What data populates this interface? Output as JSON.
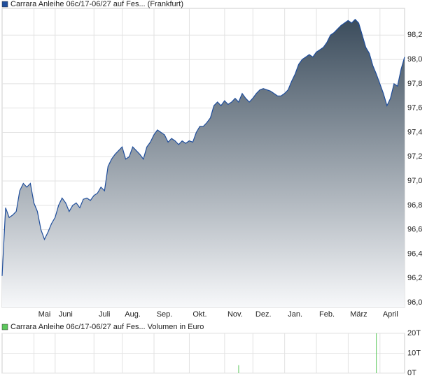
{
  "chart_data": [
    {
      "type": "area",
      "title": "Carrara Anleihe 06c/17-06/27 auf Fes... (Frankfurt)",
      "categories": [
        null,
        null,
        null,
        null,
        null,
        null,
        null,
        null,
        null,
        null,
        null,
        null,
        "Mai",
        null,
        null,
        null,
        null,
        null,
        "Juni",
        null,
        null,
        null,
        null,
        null,
        null,
        null,
        null,
        null,
        null,
        "Juli",
        null,
        null,
        null,
        null,
        null,
        null,
        null,
        "Aug.",
        null,
        null,
        null,
        null,
        null,
        null,
        null,
        null,
        "Sep.",
        null,
        null,
        null,
        null,
        null,
        null,
        null,
        null,
        null,
        "Okt.",
        null,
        null,
        null,
        null,
        null,
        null,
        null,
        null,
        null,
        "Nov.",
        null,
        null,
        null,
        null,
        null,
        null,
        null,
        "Dez.",
        null,
        null,
        null,
        null,
        null,
        null,
        null,
        null,
        "Jan.",
        null,
        null,
        null,
        null,
        null,
        null,
        null,
        null,
        "Feb.",
        null,
        null,
        null,
        null,
        null,
        null,
        null,
        null,
        "März",
        null,
        null,
        null,
        null,
        null,
        null,
        null,
        null,
        "April",
        null,
        null,
        null,
        null
      ],
      "series": [
        {
          "name": "Carrara Anleihe 06c/17-06/27 auf Fes... (Frankfurt)",
          "color": "#1f4e9c",
          "values": [
            96.22,
            96.78,
            96.7,
            96.72,
            96.75,
            96.92,
            96.98,
            96.95,
            96.98,
            96.82,
            96.75,
            96.6,
            96.52,
            96.58,
            96.65,
            96.7,
            96.8,
            96.86,
            96.82,
            96.75,
            96.8,
            96.82,
            96.78,
            96.85,
            96.86,
            96.84,
            96.88,
            96.9,
            96.95,
            96.92,
            97.12,
            97.18,
            97.22,
            97.25,
            97.28,
            97.18,
            97.2,
            97.28,
            97.25,
            97.22,
            97.18,
            97.28,
            97.32,
            97.38,
            97.42,
            97.4,
            97.38,
            97.32,
            97.35,
            97.33,
            97.3,
            97.33,
            97.31,
            97.33,
            97.32,
            97.4,
            97.45,
            97.45,
            97.48,
            97.52,
            97.62,
            97.65,
            97.62,
            97.66,
            97.63,
            97.65,
            97.68,
            97.65,
            97.72,
            97.68,
            97.65,
            97.68,
            97.72,
            97.75,
            97.76,
            97.75,
            97.74,
            97.72,
            97.7,
            97.7,
            97.72,
            97.75,
            97.82,
            97.88,
            97.96,
            98.0,
            98.02,
            98.04,
            98.02,
            98.06,
            98.08,
            98.1,
            98.14,
            98.2,
            98.22,
            98.25,
            98.28,
            98.3,
            98.32,
            98.3,
            98.33,
            98.3,
            98.2,
            98.1,
            98.05,
            97.95,
            97.88,
            97.8,
            97.72,
            97.62,
            97.68,
            97.8,
            97.78,
            97.92,
            98.02
          ]
        }
      ],
      "ylim": [
        95.96,
        98.42
      ],
      "yticks": [
        {
          "value": 96.0,
          "label": "96,0"
        },
        {
          "value": 96.2,
          "label": "96,2"
        },
        {
          "value": 96.4,
          "label": "96,4"
        },
        {
          "value": 96.6,
          "label": "96,6"
        },
        {
          "value": 96.8,
          "label": "96,8"
        },
        {
          "value": 97.0,
          "label": "97,0"
        },
        {
          "value": 97.2,
          "label": "97,2"
        },
        {
          "value": 97.4,
          "label": "97,4"
        },
        {
          "value": 97.6,
          "label": "97,6"
        },
        {
          "value": 97.8,
          "label": "97,8"
        },
        {
          "value": 98.0,
          "label": "98,0"
        },
        {
          "value": 98.2,
          "label": "98,2"
        }
      ],
      "grid": true
    },
    {
      "type": "bar",
      "title": "Carrara Anleihe 06c/17-06/27 auf Fes... Volumen in Euro",
      "series": [
        {
          "name": "Carrara Anleihe 06c/17-06/27 auf Fes... Volumen in Euro",
          "color": "#5cc85c",
          "values": [
            0,
            0,
            0,
            0,
            0,
            0,
            0,
            0,
            0,
            0,
            0,
            0,
            0,
            0,
            0,
            0,
            0,
            0,
            0,
            0,
            0,
            0,
            0,
            0,
            0,
            0,
            0,
            0,
            0,
            0,
            0,
            0,
            0,
            0,
            0,
            0,
            0,
            0,
            0,
            0,
            0,
            0,
            0,
            0,
            0,
            0,
            0,
            0,
            0,
            0,
            0,
            0,
            0,
            0,
            0,
            0,
            0,
            0,
            0,
            0,
            0,
            0,
            0,
            0,
            0,
            0,
            0,
            4000,
            0,
            0,
            0,
            0,
            0,
            0,
            0,
            0,
            0,
            0,
            0,
            0,
            0,
            0,
            0,
            0,
            0,
            0,
            0,
            0,
            0,
            0,
            0,
            0,
            0,
            0,
            0,
            0,
            0,
            0,
            0,
            0,
            0,
            0,
            0,
            0,
            0,
            0,
            20000,
            0,
            0,
            0,
            0,
            0,
            0,
            0,
            0
          ]
        }
      ],
      "ylim": [
        0,
        20000
      ],
      "yticks": [
        {
          "value": 0,
          "label": "0T"
        },
        {
          "value": 10000,
          "label": "10T"
        },
        {
          "value": 20000,
          "label": "20T"
        }
      ],
      "grid": true
    }
  ]
}
